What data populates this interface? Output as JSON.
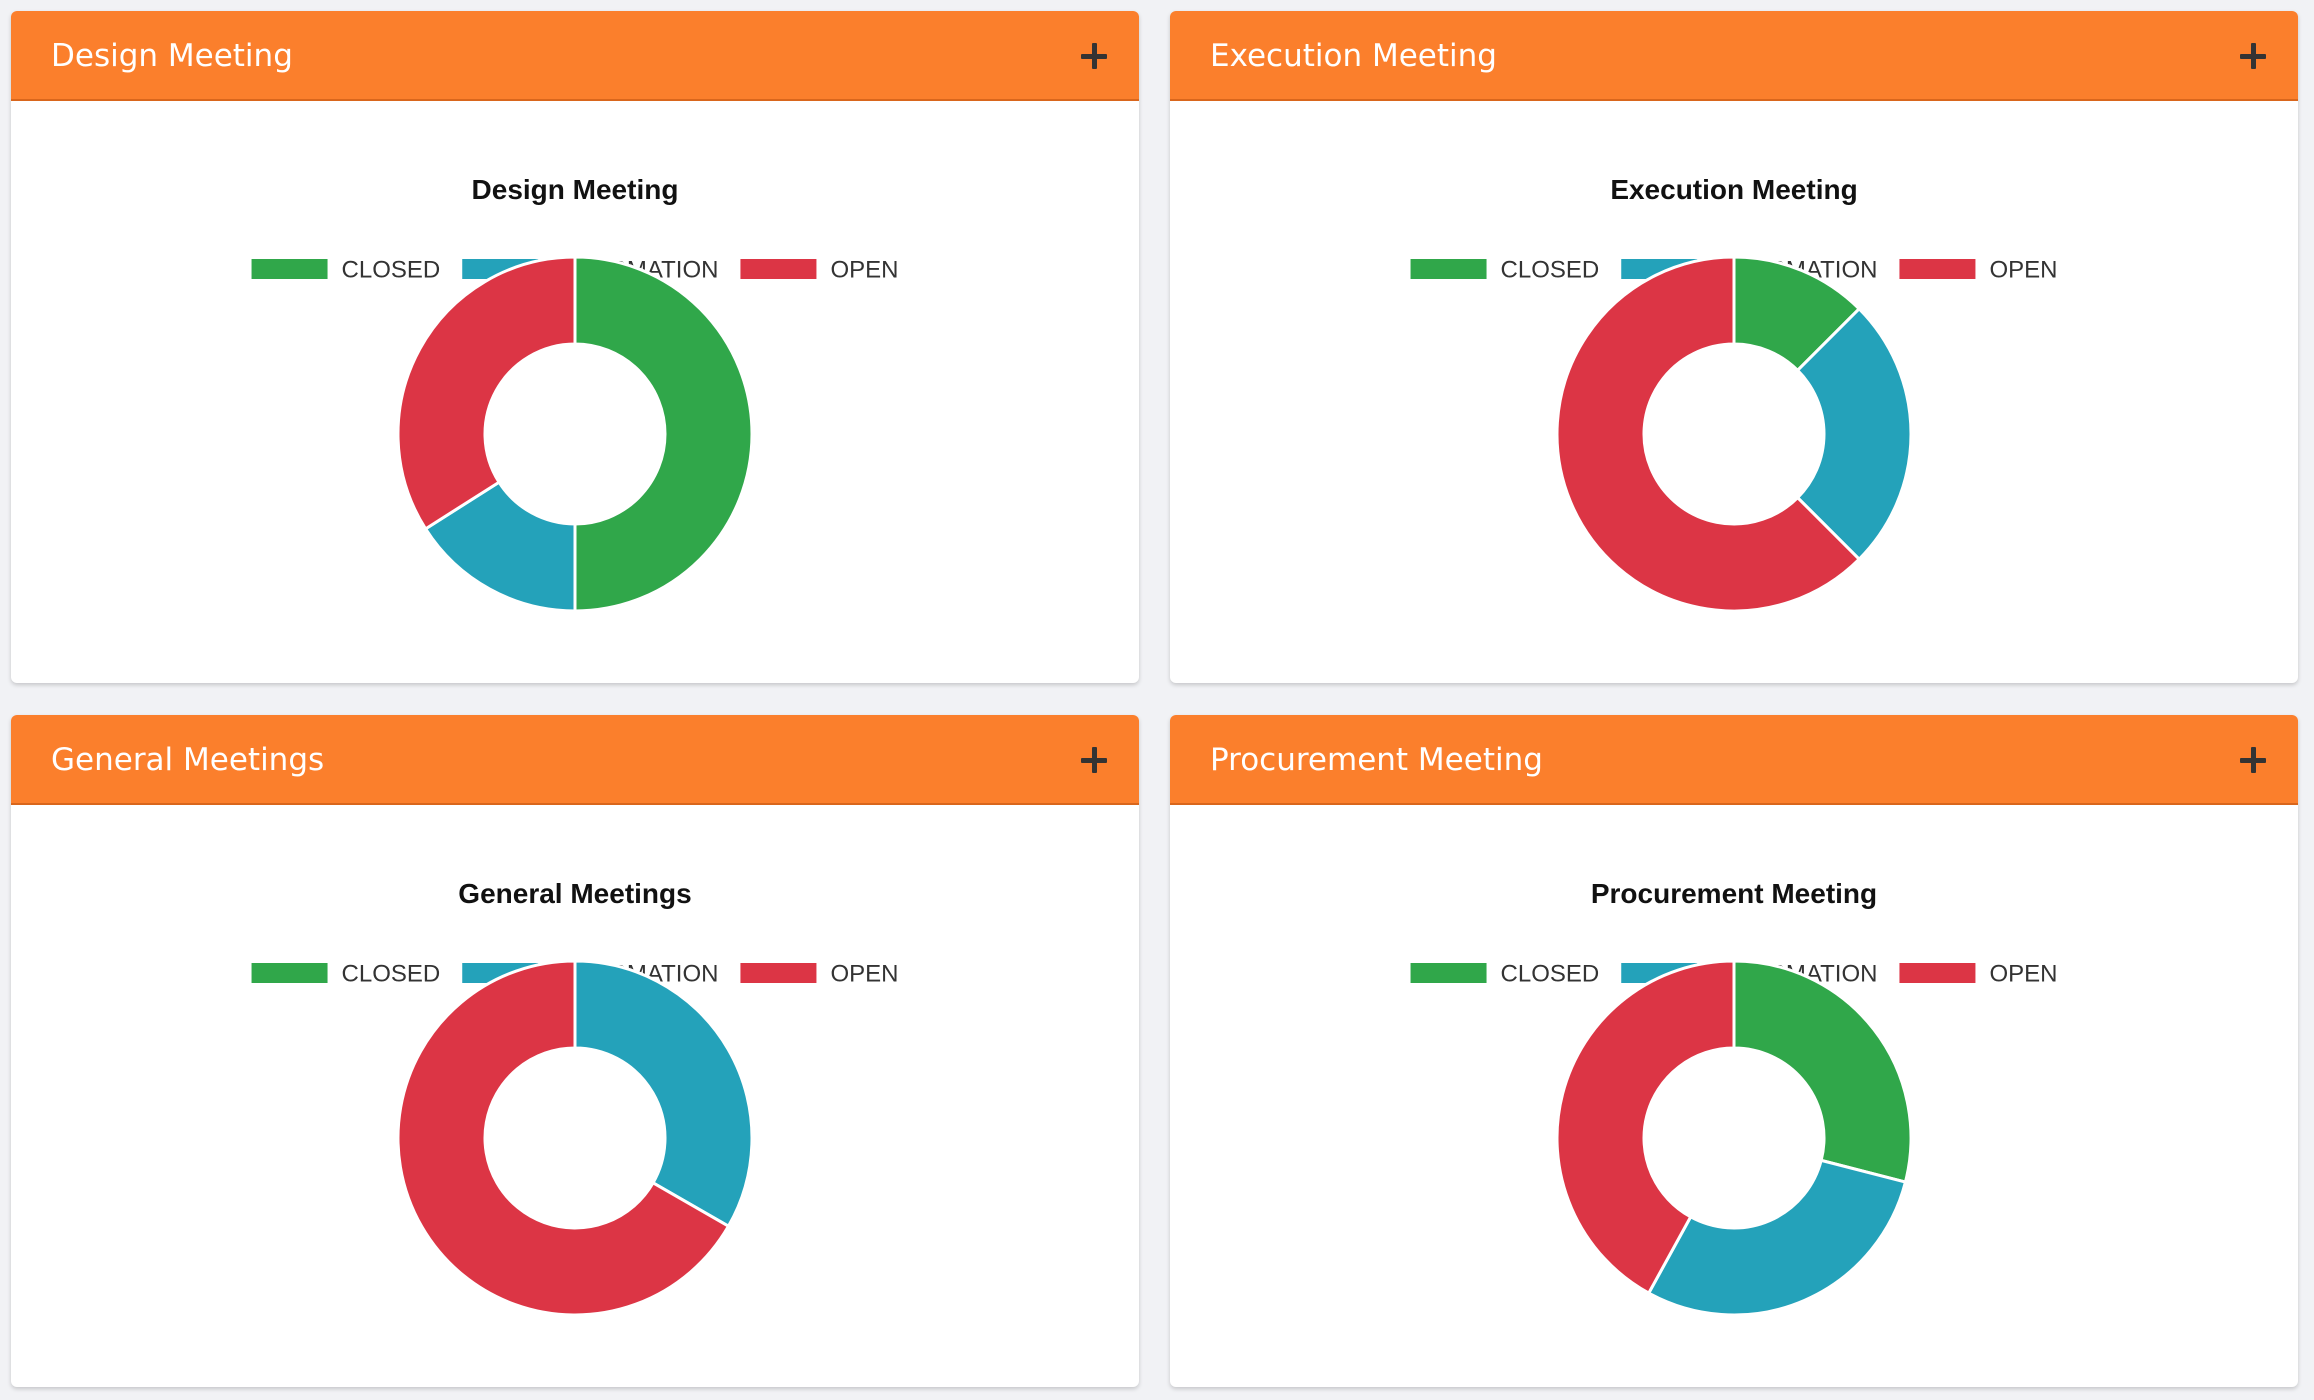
{
  "cards": [
    {
      "header_title": "Design Meeting",
      "add_label": "+"
    },
    {
      "header_title": "Execution Meeting",
      "add_label": "+"
    },
    {
      "header_title": "General Meetings",
      "add_label": "+"
    },
    {
      "header_title": "Procurement Meeting",
      "add_label": "+"
    }
  ],
  "colors": {
    "header": "#fb7f2c",
    "closed": "#30a74a",
    "information": "#24a2ba",
    "open": "#dc3545"
  },
  "chart_data": [
    {
      "type": "pie",
      "variant": "doughnut",
      "title": "Design Meeting",
      "labels": [
        "CLOSED",
        "INFORMATION",
        "OPEN"
      ],
      "colors": [
        "#30a74a",
        "#24a2ba",
        "#dc3545"
      ],
      "values": [
        50,
        16,
        34
      ],
      "legend_position": "top"
    },
    {
      "type": "pie",
      "variant": "doughnut",
      "title": "Execution Meeting",
      "labels": [
        "CLOSED",
        "INFORMATION",
        "OPEN"
      ],
      "colors": [
        "#30a74a",
        "#24a2ba",
        "#dc3545"
      ],
      "values": [
        12.5,
        25,
        62.5
      ],
      "legend_position": "top"
    },
    {
      "type": "pie",
      "variant": "doughnut",
      "title": "General Meetings",
      "labels": [
        "CLOSED",
        "INFORMATION",
        "OPEN"
      ],
      "colors": [
        "#30a74a",
        "#24a2ba",
        "#dc3545"
      ],
      "values": [
        0,
        33.3,
        66.7
      ],
      "legend_position": "top"
    },
    {
      "type": "pie",
      "variant": "doughnut",
      "title": "Procurement Meeting",
      "labels": [
        "CLOSED",
        "INFORMATION",
        "OPEN"
      ],
      "colors": [
        "#30a74a",
        "#24a2ba",
        "#dc3545"
      ],
      "values": [
        29,
        29,
        42
      ],
      "legend_position": "top"
    }
  ]
}
